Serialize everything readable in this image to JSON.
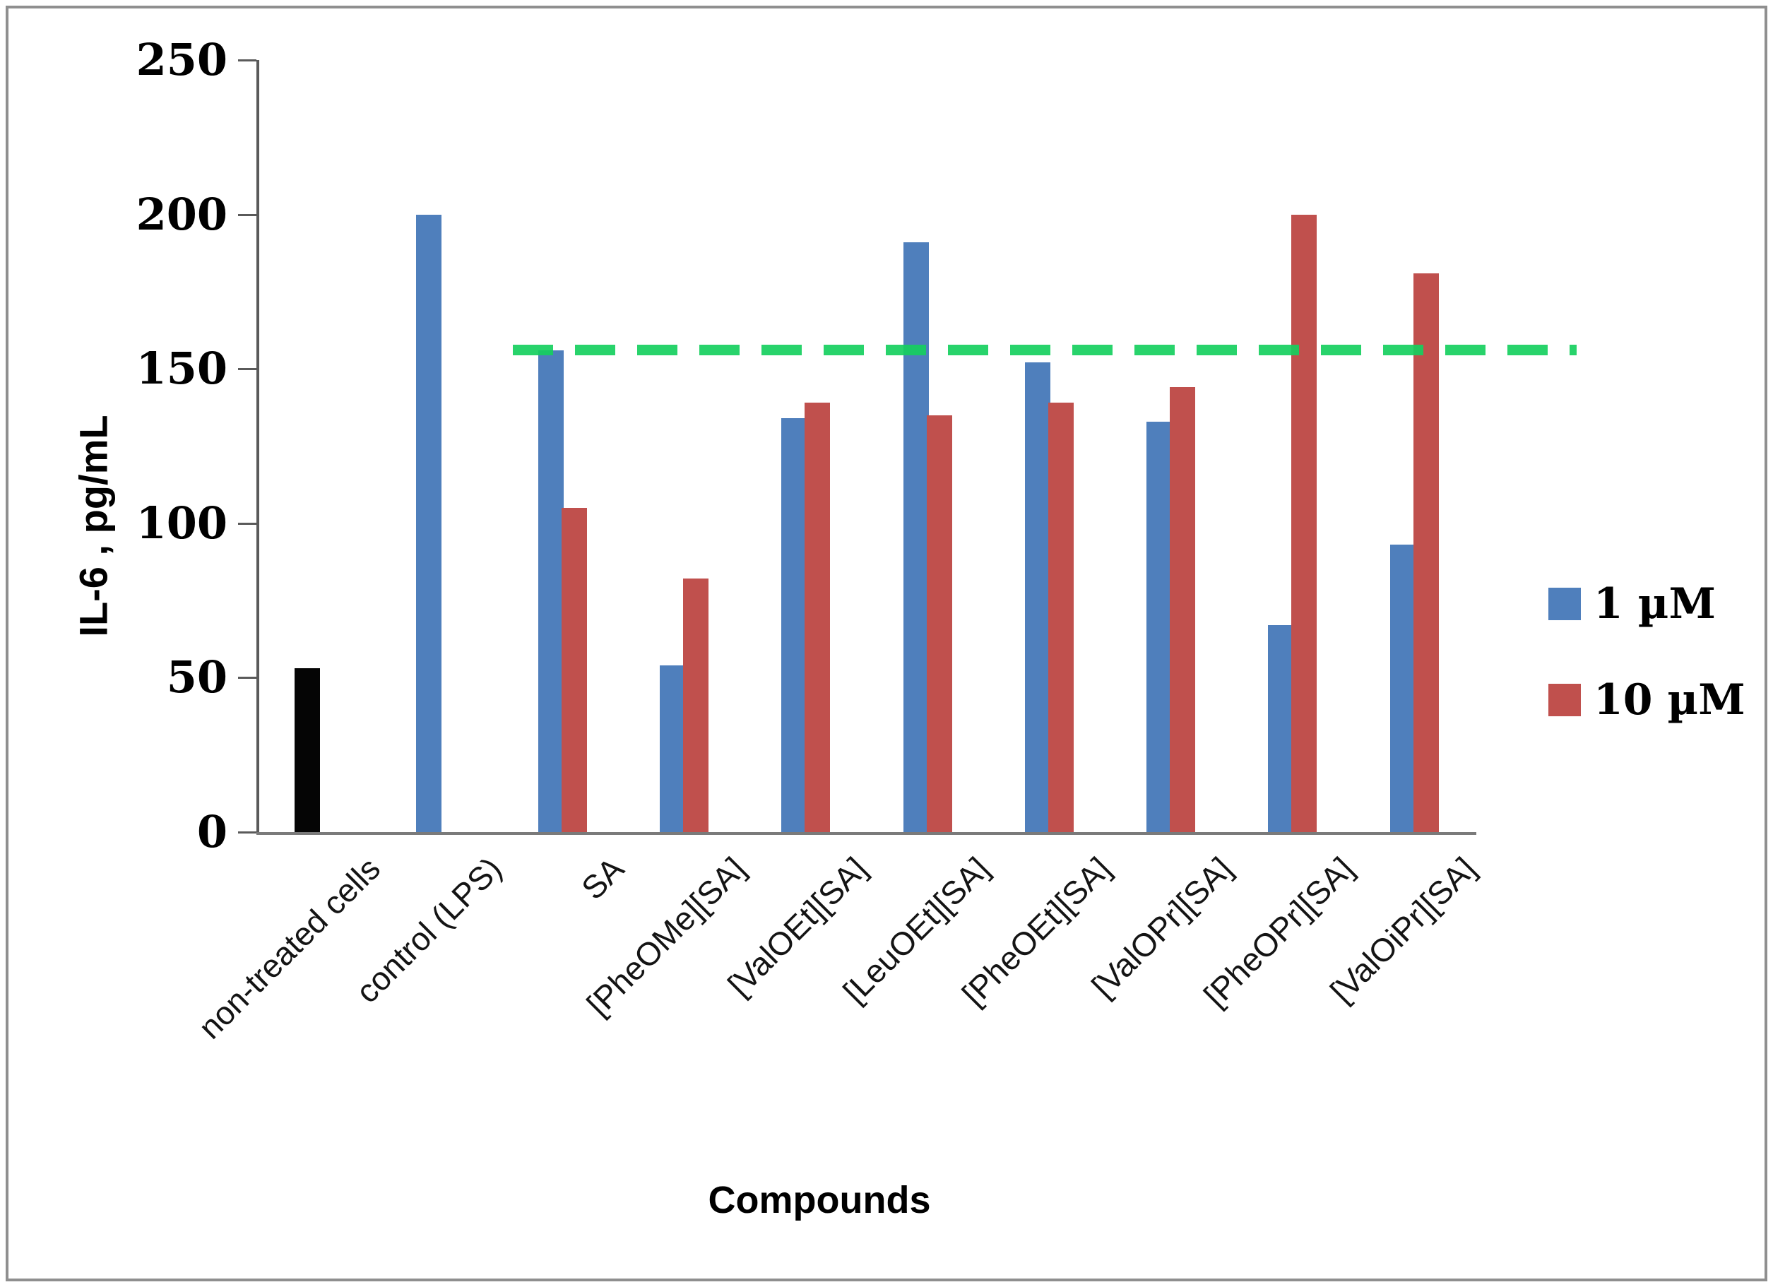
{
  "figure": {
    "ylabel": "IL-6 , pg/mL",
    "xlabel": "Compounds"
  },
  "legend": {
    "items": [
      {
        "label": "1 µM",
        "color": "#4f7fbc"
      },
      {
        "label": "10 µM",
        "color": "#c0504d"
      }
    ]
  },
  "chart_data": {
    "type": "bar",
    "title": "",
    "xlabel": "Compounds",
    "ylabel": "IL-6 , pg/mL",
    "ylim": [
      0,
      250
    ],
    "yticks": [
      250,
      200,
      150,
      100,
      50,
      0
    ],
    "grid": false,
    "legend_position": "right",
    "categories": [
      "non-treated cells",
      "control (LPS)",
      "SA",
      "[PheOMe][SA]",
      "[ValOEt][SA]",
      "[LeuOEt][SA]",
      "[PheOEt][SA]",
      "[ValOPr][SA]",
      "[PheOPr][SA]",
      "[ValOiPr][SA]"
    ],
    "series": [
      {
        "name": "1 µM",
        "color": "#4f7fbc",
        "values": [
          53,
          200,
          156,
          54,
          134,
          191,
          152,
          133,
          67,
          93
        ]
      },
      {
        "name": "10 µM",
        "color": "#c0504d",
        "values": [
          null,
          null,
          105,
          82,
          139,
          135,
          139,
          144,
          200,
          181
        ]
      }
    ],
    "bar_color_overrides": [
      {
        "series": 0,
        "category_index": 0,
        "color": "#050505",
        "note": "non-treated cells bar is black"
      }
    ],
    "reference_line": {
      "value": 156,
      "color": "#15cf5e",
      "style": "dashed",
      "spans_categories": "SA through [ValOiPr][SA]"
    }
  }
}
